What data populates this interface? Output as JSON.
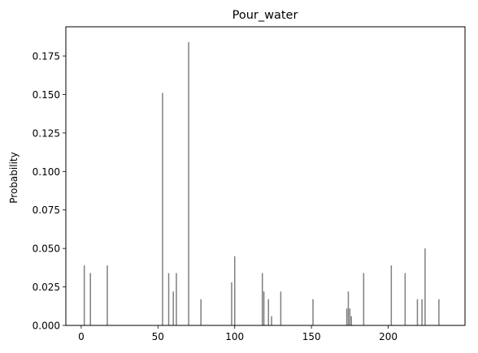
{
  "chart_data": {
    "type": "bar",
    "title": "Pour_water",
    "xlabel": "",
    "ylabel": "Probability",
    "xlim": [
      -10,
      250
    ],
    "ylim": [
      0,
      0.194
    ],
    "xticks": [
      0,
      50,
      100,
      150,
      200
    ],
    "yticks": [
      0.0,
      0.025,
      0.05,
      0.075,
      0.1,
      0.125,
      0.15,
      0.175
    ],
    "ytick_labels": [
      "0.000",
      "0.025",
      "0.050",
      "0.075",
      "0.100",
      "0.125",
      "0.150",
      "0.175"
    ],
    "grid": false,
    "bar_color": "#808080",
    "x": [
      2,
      6,
      17,
      53,
      57,
      60,
      62,
      70,
      78,
      98,
      100,
      118,
      119,
      122,
      124,
      130,
      151,
      173,
      174,
      175,
      176,
      184,
      202,
      211,
      219,
      222,
      224,
      233
    ],
    "values": [
      0.039,
      0.034,
      0.039,
      0.151,
      0.034,
      0.022,
      0.034,
      0.184,
      0.017,
      0.028,
      0.045,
      0.034,
      0.022,
      0.017,
      0.006,
      0.022,
      0.017,
      0.011,
      0.022,
      0.011,
      0.006,
      0.034,
      0.039,
      0.034,
      0.017,
      0.017,
      0.05,
      0.017
    ]
  }
}
